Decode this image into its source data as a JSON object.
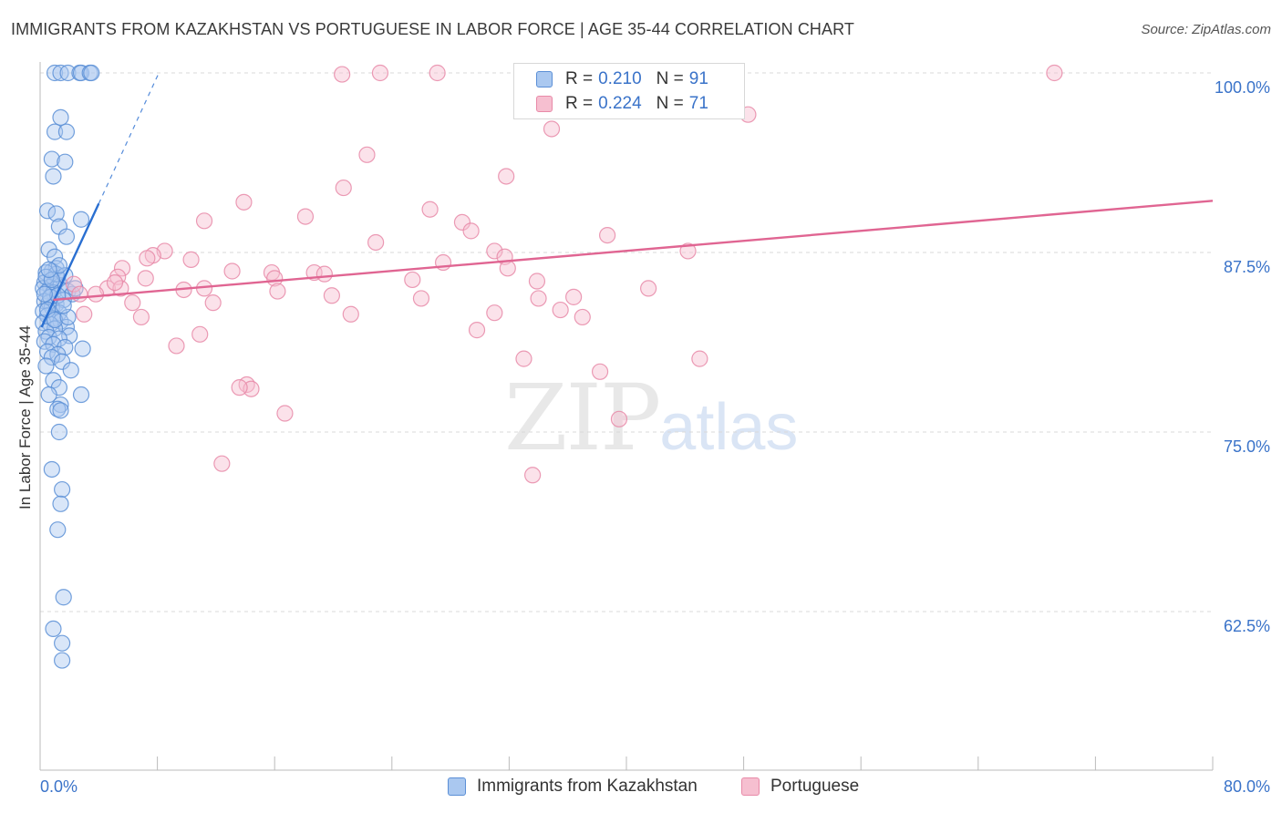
{
  "header": {
    "title": "IMMIGRANTS FROM KAZAKHSTAN VS PORTUGUESE IN LABOR FORCE | AGE 35-44 CORRELATION CHART",
    "source": "Source: ZipAtlas.com"
  },
  "watermark": {
    "zip": "ZIP",
    "atlas": "atlas"
  },
  "legend_top": [
    {
      "r_label": "R =",
      "r_value": "0.210",
      "n_label": "N =",
      "n_value": "91"
    },
    {
      "r_label": "R =",
      "r_value": "0.224",
      "n_label": "N =",
      "n_value": "71"
    }
  ],
  "colors": {
    "blue_fill": "#aac8f0",
    "blue_stroke": "#5b8fd6",
    "blue_line": "#2a6fd1",
    "pink_fill": "#f6bfd0",
    "pink_stroke": "#e88aa8",
    "pink_line": "#e06592",
    "tick_text": "#3a73c9",
    "grid": "#d9d9d9"
  },
  "chart_data": {
    "type": "scatter",
    "title": "IMMIGRANTS FROM KAZAKHSTAN VS PORTUGUESE IN LABOR FORCE | AGE 35-44 CORRELATION CHART",
    "xlabel": "",
    "ylabel": "In Labor Force | Age 35-44",
    "xlim": [
      0,
      80
    ],
    "ylim": [
      50,
      100
    ],
    "x_tick_labels": [
      "0.0%",
      "80.0%"
    ],
    "y_ticks": [
      62.5,
      75.0,
      87.5,
      100.0
    ],
    "y_tick_labels": [
      "62.5%",
      "75.0%",
      "87.5%",
      "100.0%"
    ],
    "legend_position": "bottom",
    "series": [
      {
        "name": "Immigrants from Kazakhstan",
        "color": "blue",
        "trend": {
          "x": [
            0.1,
            4.0
          ],
          "y": [
            82.3,
            90.9
          ],
          "dashed_to": [
            8.1,
            100.0
          ]
        },
        "points": [
          [
            1.0,
            100.0
          ],
          [
            1.4,
            100.0
          ],
          [
            1.9,
            100.0
          ],
          [
            2.7,
            100.0
          ],
          [
            2.8,
            100.0
          ],
          [
            3.4,
            100.0
          ],
          [
            3.5,
            100.0
          ],
          [
            1.4,
            96.9
          ],
          [
            1.0,
            95.9
          ],
          [
            1.8,
            95.9
          ],
          [
            0.8,
            94.0
          ],
          [
            1.7,
            93.8
          ],
          [
            0.9,
            92.8
          ],
          [
            0.5,
            90.4
          ],
          [
            1.1,
            90.2
          ],
          [
            2.8,
            89.8
          ],
          [
            1.3,
            89.3
          ],
          [
            1.8,
            88.6
          ],
          [
            0.6,
            87.7
          ],
          [
            1.0,
            87.2
          ],
          [
            1.1,
            86.4
          ],
          [
            0.8,
            86.2
          ],
          [
            0.4,
            86.1
          ],
          [
            1.2,
            85.7
          ],
          [
            0.3,
            85.4
          ],
          [
            0.9,
            85.3
          ],
          [
            0.7,
            85.1
          ],
          [
            0.2,
            85.0
          ],
          [
            1.4,
            85.2
          ],
          [
            0.5,
            84.8
          ],
          [
            0.9,
            84.7
          ],
          [
            1.9,
            84.8
          ],
          [
            2.2,
            84.6
          ],
          [
            0.3,
            84.1
          ],
          [
            0.6,
            84.0
          ],
          [
            1.1,
            83.9
          ],
          [
            1.6,
            84.2
          ],
          [
            0.8,
            83.7
          ],
          [
            0.2,
            83.4
          ],
          [
            1.3,
            83.3
          ],
          [
            0.5,
            83.1
          ],
          [
            0.9,
            82.9
          ],
          [
            1.4,
            82.7
          ],
          [
            0.2,
            82.6
          ],
          [
            0.7,
            82.5
          ],
          [
            1.8,
            82.3
          ],
          [
            1.0,
            82.2
          ],
          [
            0.4,
            82.0
          ],
          [
            2.0,
            81.7
          ],
          [
            0.6,
            81.6
          ],
          [
            1.3,
            81.5
          ],
          [
            0.3,
            81.3
          ],
          [
            0.9,
            81.1
          ],
          [
            1.7,
            80.9
          ],
          [
            2.9,
            80.8
          ],
          [
            0.5,
            80.6
          ],
          [
            1.2,
            80.4
          ],
          [
            0.8,
            80.2
          ],
          [
            1.5,
            79.9
          ],
          [
            0.4,
            79.6
          ],
          [
            2.1,
            79.3
          ],
          [
            0.9,
            78.6
          ],
          [
            1.3,
            78.1
          ],
          [
            0.6,
            77.6
          ],
          [
            2.8,
            77.6
          ],
          [
            1.4,
            76.9
          ],
          [
            1.2,
            76.6
          ],
          [
            1.4,
            76.5
          ],
          [
            1.3,
            75.0
          ],
          [
            0.8,
            72.4
          ],
          [
            1.5,
            71.0
          ],
          [
            1.4,
            70.0
          ],
          [
            1.2,
            68.2
          ],
          [
            1.6,
            63.5
          ],
          [
            0.9,
            61.3
          ],
          [
            1.5,
            60.3
          ],
          [
            1.5,
            59.1
          ],
          [
            1.1,
            86.0
          ],
          [
            0.4,
            85.8
          ],
          [
            1.7,
            85.9
          ],
          [
            0.7,
            84.4
          ],
          [
            1.2,
            84.5
          ],
          [
            2.4,
            85.0
          ],
          [
            0.5,
            83.5
          ],
          [
            1.0,
            82.8
          ],
          [
            1.9,
            83.0
          ],
          [
            0.3,
            84.6
          ],
          [
            1.6,
            83.8
          ],
          [
            0.8,
            85.6
          ],
          [
            1.3,
            86.6
          ],
          [
            0.6,
            86.3
          ]
        ]
      },
      {
        "name": "Portuguese",
        "color": "pink",
        "trend": {
          "x": [
            0.9,
            80.0
          ],
          "y": [
            84.2,
            91.1
          ]
        },
        "points": [
          [
            20.6,
            99.9
          ],
          [
            23.2,
            100.0
          ],
          [
            27.1,
            100.0
          ],
          [
            69.2,
            100.0
          ],
          [
            34.9,
            96.1
          ],
          [
            48.3,
            97.1
          ],
          [
            22.3,
            94.3
          ],
          [
            20.7,
            92.0
          ],
          [
            31.8,
            92.8
          ],
          [
            13.9,
            91.0
          ],
          [
            18.1,
            90.0
          ],
          [
            26.6,
            90.5
          ],
          [
            11.2,
            89.7
          ],
          [
            28.8,
            89.6
          ],
          [
            29.4,
            89.0
          ],
          [
            22.9,
            88.2
          ],
          [
            38.7,
            88.7
          ],
          [
            8.5,
            87.6
          ],
          [
            7.7,
            87.3
          ],
          [
            7.3,
            87.1
          ],
          [
            31.0,
            87.6
          ],
          [
            31.7,
            87.2
          ],
          [
            44.2,
            87.6
          ],
          [
            10.3,
            87.0
          ],
          [
            27.5,
            86.8
          ],
          [
            5.6,
            86.4
          ],
          [
            31.9,
            86.4
          ],
          [
            15.8,
            86.1
          ],
          [
            18.7,
            86.1
          ],
          [
            19.4,
            86.0
          ],
          [
            16.0,
            85.7
          ],
          [
            25.4,
            85.6
          ],
          [
            5.3,
            85.8
          ],
          [
            7.2,
            85.7
          ],
          [
            33.9,
            85.5
          ],
          [
            2.3,
            85.3
          ],
          [
            4.6,
            85.0
          ],
          [
            5.5,
            85.0
          ],
          [
            9.8,
            84.9
          ],
          [
            11.2,
            85.0
          ],
          [
            41.5,
            85.0
          ],
          [
            16.2,
            84.8
          ],
          [
            2.7,
            84.6
          ],
          [
            3.8,
            84.6
          ],
          [
            19.9,
            84.5
          ],
          [
            34.0,
            84.3
          ],
          [
            26.0,
            84.3
          ],
          [
            6.3,
            84.0
          ],
          [
            11.8,
            84.0
          ],
          [
            35.5,
            83.5
          ],
          [
            21.2,
            83.2
          ],
          [
            31.0,
            83.3
          ],
          [
            37.0,
            83.0
          ],
          [
            3.0,
            83.2
          ],
          [
            6.9,
            83.0
          ],
          [
            36.4,
            84.4
          ],
          [
            29.8,
            82.1
          ],
          [
            10.9,
            81.8
          ],
          [
            9.3,
            81.0
          ],
          [
            33.0,
            80.1
          ],
          [
            38.2,
            79.2
          ],
          [
            45.0,
            80.1
          ],
          [
            14.1,
            78.3
          ],
          [
            14.4,
            78.0
          ],
          [
            13.6,
            78.1
          ],
          [
            16.7,
            76.3
          ],
          [
            39.5,
            75.9
          ],
          [
            12.4,
            72.8
          ],
          [
            33.6,
            72.0
          ],
          [
            5.1,
            85.4
          ],
          [
            13.1,
            86.2
          ]
        ]
      }
    ]
  },
  "legend_bottom": [
    {
      "label": "Immigrants from Kazakhstan"
    },
    {
      "label": "Portuguese"
    }
  ]
}
